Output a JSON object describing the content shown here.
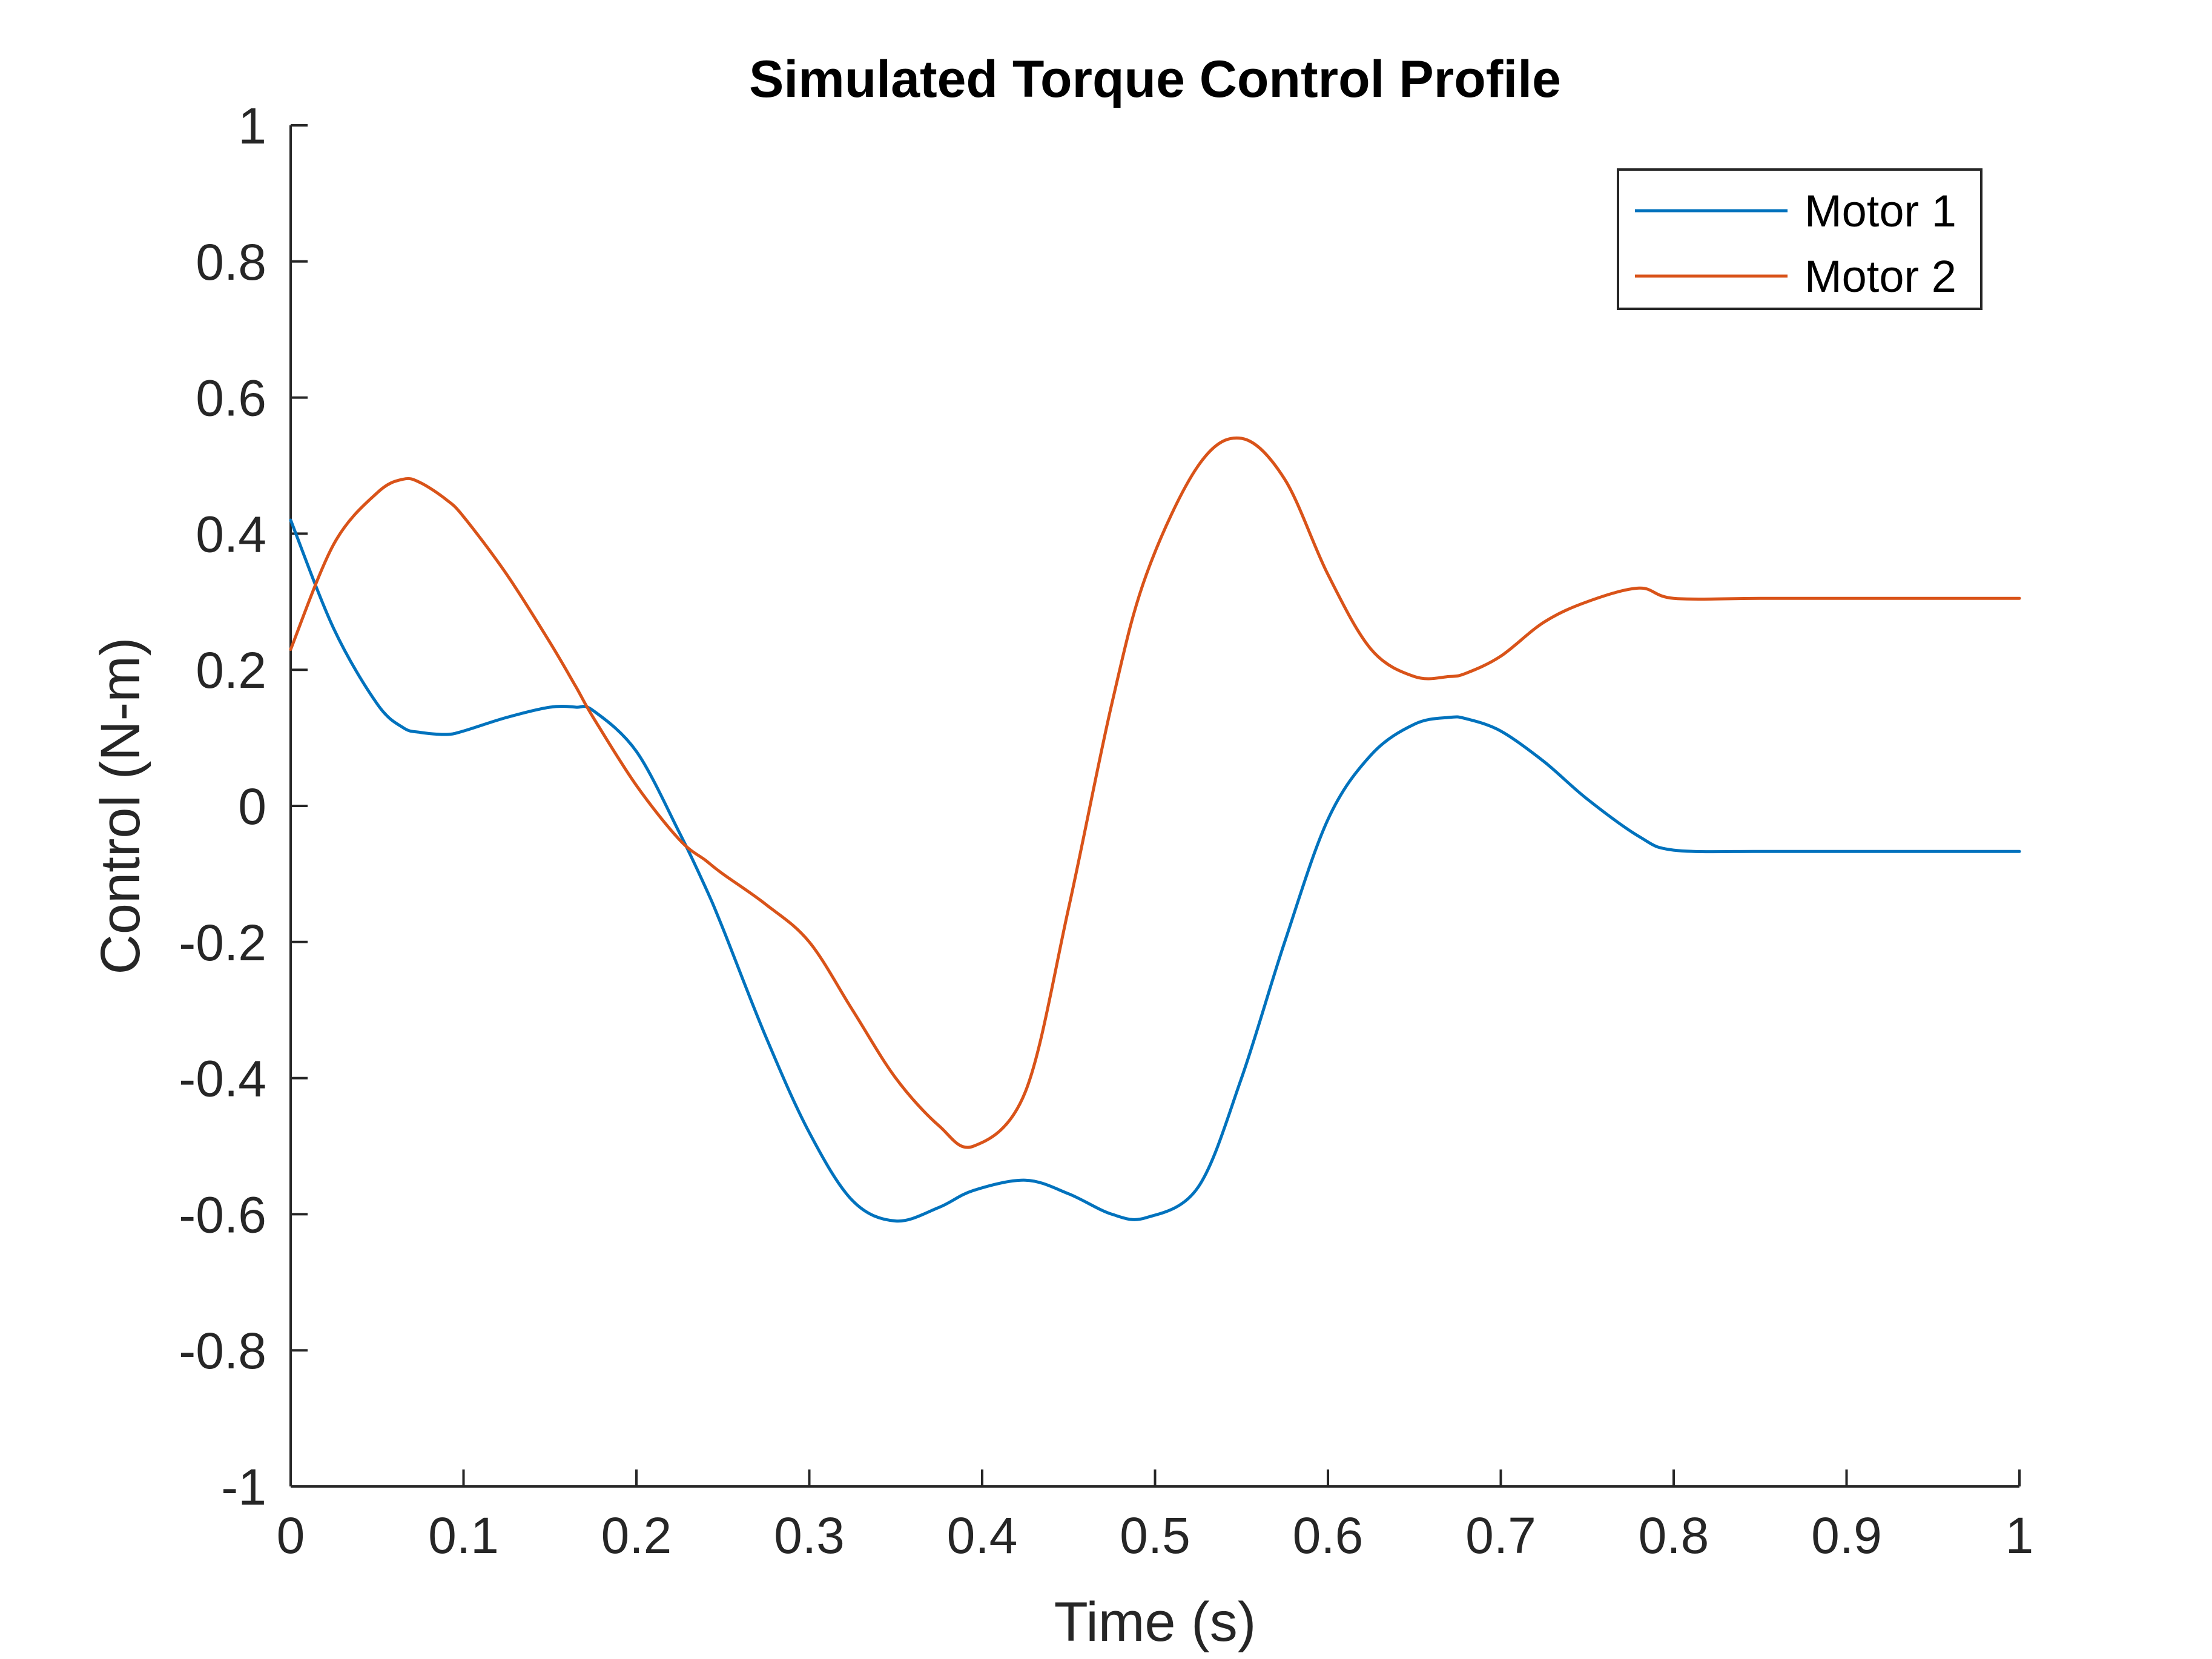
{
  "chart_data": {
    "type": "line",
    "title": "Simulated Torque Control Profile",
    "xlabel": "Time (s)",
    "ylabel": "Control (N-m)",
    "xlim": [
      0,
      1
    ],
    "ylim": [
      -1,
      1
    ],
    "xticks": [
      "0",
      "0.1",
      "0.2",
      "0.3",
      "0.4",
      "0.5",
      "0.6",
      "0.7",
      "0.8",
      "0.9",
      "1"
    ],
    "yticks": [
      "1",
      "0.8",
      "0.6",
      "0.4",
      "0.2",
      "0",
      "-0.2",
      "-0.4",
      "-0.6",
      "-0.8",
      "-1"
    ],
    "grid": false,
    "legend_position": "top-right",
    "x": [
      0,
      0.025,
      0.05,
      0.065,
      0.075,
      0.09,
      0.1,
      0.125,
      0.15,
      0.165,
      0.175,
      0.2,
      0.225,
      0.24,
      0.25,
      0.275,
      0.3,
      0.325,
      0.35,
      0.375,
      0.395,
      0.425,
      0.45,
      0.475,
      0.495,
      0.525,
      0.55,
      0.575,
      0.6,
      0.625,
      0.65,
      0.67,
      0.68,
      0.7,
      0.725,
      0.75,
      0.78,
      0.8,
      0.85,
      0.9,
      0.95,
      1.0
    ],
    "series": [
      {
        "name": "Motor 1",
        "color": "#0072BD",
        "values": [
          0.42,
          0.26,
          0.15,
          0.115,
          0.108,
          0.105,
          0.11,
          0.13,
          0.145,
          0.145,
          0.14,
          0.08,
          -0.04,
          -0.12,
          -0.18,
          -0.34,
          -0.48,
          -0.58,
          -0.61,
          -0.59,
          -0.565,
          -0.55,
          -0.57,
          -0.6,
          -0.605,
          -0.56,
          -0.4,
          -0.2,
          -0.02,
          0.075,
          0.12,
          0.13,
          0.128,
          0.11,
          0.065,
          0.01,
          -0.045,
          -0.065,
          -0.067,
          -0.067,
          -0.067,
          -0.067
        ]
      },
      {
        "name": "Motor 2",
        "color": "#D95319",
        "values": [
          0.23,
          0.385,
          0.46,
          0.48,
          0.475,
          0.45,
          0.425,
          0.34,
          0.24,
          0.175,
          0.13,
          0.03,
          -0.05,
          -0.08,
          -0.1,
          -0.145,
          -0.2,
          -0.3,
          -0.4,
          -0.47,
          -0.5,
          -0.42,
          -0.15,
          0.15,
          0.34,
          0.5,
          0.54,
          0.48,
          0.34,
          0.23,
          0.19,
          0.19,
          0.195,
          0.22,
          0.27,
          0.3,
          0.32,
          0.305,
          0.305,
          0.305,
          0.305,
          0.305
        ]
      }
    ]
  },
  "colors": {
    "axis": "#262626",
    "background": "#ffffff"
  }
}
